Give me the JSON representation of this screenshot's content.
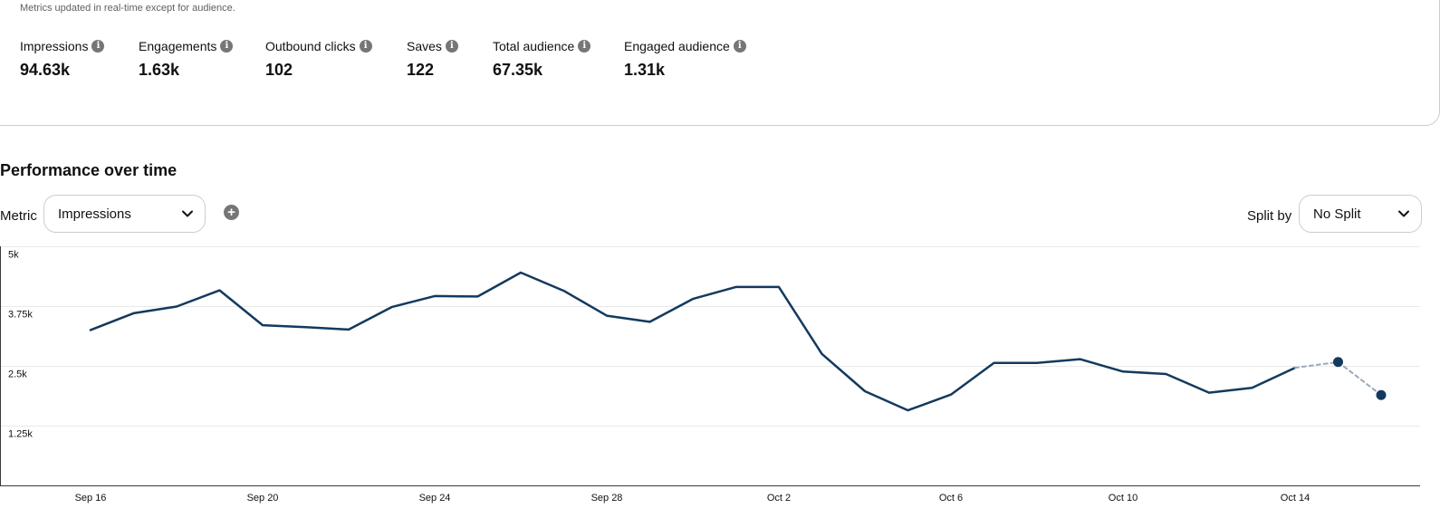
{
  "summary": {
    "subtitle": "Metrics updated in real-time except for audience.",
    "metrics": [
      {
        "label": "Impressions",
        "value": "94.63k"
      },
      {
        "label": "Engagements",
        "value": "1.63k"
      },
      {
        "label": "Outbound clicks",
        "value": "102"
      },
      {
        "label": "Saves",
        "value": "122"
      },
      {
        "label": "Total audience",
        "value": "67.35k"
      },
      {
        "label": "Engaged audience",
        "value": "1.31k"
      }
    ],
    "info_icon": "info-icon",
    "info_glyph": "i"
  },
  "performance": {
    "title": "Performance over time",
    "metric_label": "Metric",
    "metric_value": "Impressions",
    "add_glyph": "+",
    "split_label": "Split by",
    "split_value": "No Split"
  },
  "colors": {
    "line": "#133a5e",
    "estimate": "#9aa8b8",
    "grid": "#e9e9e9",
    "axis": "#3a3a3a"
  },
  "chart_data": {
    "type": "line",
    "ylim": [
      0,
      5000
    ],
    "y_ticks": [
      {
        "value": 1250,
        "label": "1.25k"
      },
      {
        "value": 2500,
        "label": "2.5k"
      },
      {
        "value": 3750,
        "label": "3.75k"
      },
      {
        "value": 5000,
        "label": "5k"
      }
    ],
    "x_start": "Sep 16",
    "x_end": "Oct 15",
    "x_ticks": [
      {
        "day": 0,
        "label": "Sep 16"
      },
      {
        "day": 4,
        "label": "Sep 20"
      },
      {
        "day": 8,
        "label": "Sep 24"
      },
      {
        "day": 12,
        "label": "Sep 28"
      },
      {
        "day": 16,
        "label": "Oct 2"
      },
      {
        "day": 20,
        "label": "Oct 6"
      },
      {
        "day": 24,
        "label": "Oct 10"
      },
      {
        "day": 28,
        "label": "Oct 14"
      }
    ],
    "series": [
      {
        "style": "solid",
        "values": [
          3250,
          3600,
          3740,
          4080,
          3350,
          3310,
          3260,
          3730,
          3960,
          3950,
          4450,
          4070,
          3550,
          3420,
          3900,
          4150,
          4150,
          2750,
          1970,
          1570,
          1900,
          2560,
          2560,
          2640,
          2380,
          2330,
          1940,
          2040,
          2460
        ]
      },
      {
        "style": "dashed",
        "start_day": 28,
        "values": [
          2460,
          2580,
          1890
        ]
      }
    ]
  }
}
